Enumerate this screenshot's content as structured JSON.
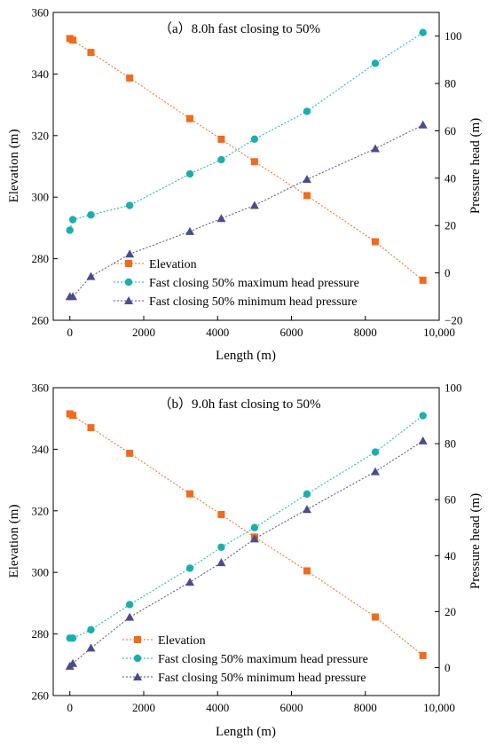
{
  "colors": {
    "elevation": "#F26A1B",
    "max_head": "#1AAFAF",
    "min_head": "#4B4C8C",
    "axis": "#000000",
    "background": "#ffffff"
  },
  "chart_data": [
    {
      "type": "line",
      "title": "（a）8.0h fast closing to 50%",
      "xlabel": "Length (m)",
      "ylabel_left": "Elevation (m)",
      "ylabel_right": "Pressure head (m)",
      "xlim": [
        -450,
        10000
      ],
      "ylim_left": [
        260,
        360
      ],
      "ylim_right": [
        -20,
        110
      ],
      "x_ticks": [
        0,
        2000,
        4000,
        6000,
        8000,
        10000
      ],
      "x_tick_labels": [
        "0",
        "2000",
        "4000",
        "6000",
        "8000",
        "10,000"
      ],
      "y_left_ticks": [
        260,
        280,
        300,
        320,
        340,
        360
      ],
      "y_right_ticks": [
        -20,
        0,
        20,
        40,
        60,
        80,
        100
      ],
      "legend_position": "lower-left",
      "series": [
        {
          "name": "Elevation",
          "axis": "left",
          "marker": "square",
          "color": "#F26A1B",
          "x": [
            0,
            80,
            570,
            1620,
            3250,
            4100,
            5000,
            6420,
            8270,
            9560
          ],
          "y": [
            351.5,
            351.0,
            347.0,
            338.7,
            325.5,
            318.8,
            311.5,
            300.5,
            285.5,
            273.0
          ]
        },
        {
          "name": "Fast closing 50% maximum head pressure",
          "axis": "right",
          "marker": "circle",
          "color": "#1AAFAF",
          "x": [
            0,
            80,
            570,
            1620,
            3250,
            4100,
            5000,
            6420,
            8270,
            9560
          ],
          "y": [
            18.0,
            22.5,
            24.5,
            28.5,
            41.8,
            47.8,
            56.5,
            68.2,
            88.5,
            101.5
          ]
        },
        {
          "name": "Fast closing 50% minimum head pressure",
          "axis": "right",
          "marker": "triangle",
          "color": "#4B4C8C",
          "x": [
            0,
            80,
            570,
            1620,
            3250,
            4100,
            5000,
            6420,
            8270,
            9560
          ],
          "y": [
            -10.0,
            -10.0,
            -1.5,
            8.0,
            17.5,
            23.0,
            28.5,
            39.5,
            52.5,
            62.5
          ]
        }
      ]
    },
    {
      "type": "line",
      "title": "（b）9.0h fast closing to 50%",
      "xlabel": "Length (m)",
      "ylabel_left": "Elevation (m)",
      "ylabel_right": "Pressure head (m)",
      "xlim": [
        -450,
        10000
      ],
      "ylim_left": [
        260,
        360
      ],
      "ylim_right": [
        -10,
        100
      ],
      "x_ticks": [
        0,
        2000,
        4000,
        6000,
        8000,
        10000
      ],
      "x_tick_labels": [
        "0",
        "2000",
        "4000",
        "6000",
        "8000",
        "10,000"
      ],
      "y_left_ticks": [
        260,
        280,
        300,
        320,
        340,
        360
      ],
      "y_right_ticks": [
        0,
        20,
        40,
        60,
        80,
        100
      ],
      "legend_position": "lower-left",
      "series": [
        {
          "name": "Elevation",
          "axis": "left",
          "marker": "square",
          "color": "#F26A1B",
          "x": [
            0,
            80,
            570,
            1620,
            3250,
            4100,
            5000,
            6420,
            8270,
            9560
          ],
          "y": [
            351.5,
            351.0,
            347.0,
            338.7,
            325.5,
            318.8,
            311.5,
            300.5,
            285.5,
            273.0
          ]
        },
        {
          "name": "Fast closing 50% maximum head pressure",
          "axis": "right",
          "marker": "circle",
          "color": "#1AAFAF",
          "x": [
            0,
            80,
            570,
            1620,
            3250,
            4100,
            5000,
            6420,
            8270,
            9560
          ],
          "y": [
            10.5,
            10.5,
            13.5,
            22.5,
            35.5,
            43.0,
            50.0,
            62.0,
            77.0,
            90.0
          ]
        },
        {
          "name": "Fast closing 50% minimum head pressure",
          "axis": "right",
          "marker": "triangle",
          "color": "#4B4C8C",
          "x": [
            0,
            80,
            570,
            1620,
            3250,
            4100,
            5000,
            6420,
            8270,
            9560
          ],
          "y": [
            0.5,
            1.5,
            7.0,
            18.0,
            30.5,
            37.5,
            46.0,
            56.5,
            70.0,
            81.0
          ]
        }
      ]
    }
  ]
}
